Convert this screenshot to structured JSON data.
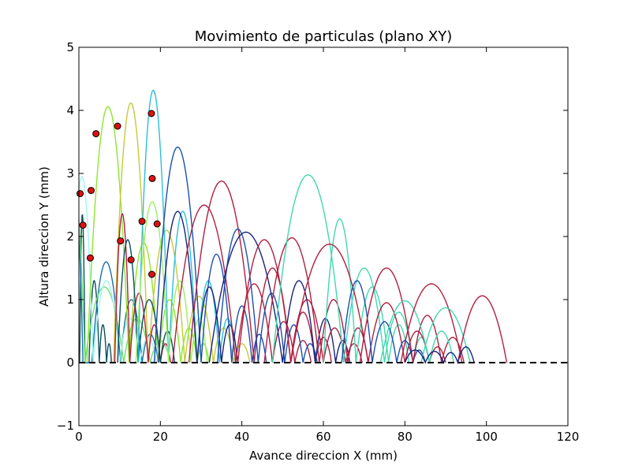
{
  "chart_data": {
    "type": "line",
    "title": "Movimiento de particulas (plano XY)",
    "xlabel": "Avance direccion X (mm)",
    "ylabel": "Altura direccion Y (mm)",
    "xlim": [
      0,
      120
    ],
    "ylim": [
      -1,
      5
    ],
    "xticks": [
      0,
      20,
      40,
      60,
      80,
      100,
      120
    ],
    "yticks": [
      -1,
      0,
      1,
      2,
      3,
      4,
      5
    ],
    "grid": false,
    "legend": "none",
    "ground_line": {
      "y": 0,
      "x_range": [
        0,
        120
      ],
      "style": "dashed",
      "color": "#000000"
    },
    "marker_color": "#dd1111",
    "start_points": [
      {
        "x": 0.3,
        "y": 2.68
      },
      {
        "x": 1.0,
        "y": 2.18
      },
      {
        "x": 2.8,
        "y": 1.66
      },
      {
        "x": 3.0,
        "y": 2.73
      },
      {
        "x": 4.2,
        "y": 3.63
      },
      {
        "x": 9.5,
        "y": 3.75
      },
      {
        "x": 10.2,
        "y": 1.93
      },
      {
        "x": 12.8,
        "y": 1.63
      },
      {
        "x": 15.5,
        "y": 2.24
      },
      {
        "x": 17.8,
        "y": 3.95
      },
      {
        "x": 18.0,
        "y": 2.92
      },
      {
        "x": 17.9,
        "y": 1.4
      },
      {
        "x": 19.2,
        "y": 2.2
      }
    ],
    "series": [
      {
        "color": "#0b4f60",
        "bounces": [
          [
            0.2,
            2.35,
            1.5
          ],
          [
            2.5,
            1.3,
            5.0
          ],
          [
            5.0,
            0.6,
            6.8
          ],
          [
            6.8,
            0.3,
            8.0
          ]
        ]
      },
      {
        "color": "#1a6fb0",
        "bounces": [
          [
            -2.8,
            2.7,
            1.0
          ],
          [
            3.2,
            1.6,
            10.2
          ],
          [
            10.2,
            1.0,
            15.5
          ],
          [
            15.5,
            0.45,
            19.5
          ]
        ]
      },
      {
        "color": "#6ee06e",
        "bounces": [
          [
            -4.0,
            2.85,
            1.5
          ],
          [
            1.5,
            1.2,
            11.0
          ],
          [
            11.0,
            0.7,
            17.5
          ],
          [
            17.5,
            0.35,
            22.5
          ]
        ]
      },
      {
        "color": "#9ff5f0",
        "bounces": [
          [
            -2.0,
            2.95,
            3.5
          ],
          [
            3.5,
            1.3,
            10.0
          ],
          [
            10.0,
            0.7,
            15.0
          ],
          [
            15.0,
            0.4,
            19.0
          ]
        ]
      },
      {
        "color": "#8ee62e",
        "bounces": [
          [
            2.0,
            4.06,
            12.3
          ],
          [
            12.3,
            1.9,
            19.5
          ],
          [
            19.5,
            1.0,
            25.0
          ],
          [
            25.0,
            0.55,
            29.0
          ],
          [
            29.0,
            0.3,
            32.0
          ]
        ]
      },
      {
        "color": "#c8c83a",
        "bounces": [
          [
            8.5,
            4.12,
            17.0
          ],
          [
            17.0,
            2.1,
            26.0
          ],
          [
            26.0,
            1.05,
            33.0
          ],
          [
            33.0,
            0.55,
            38.0
          ],
          [
            38.0,
            0.3,
            42.0
          ]
        ]
      },
      {
        "color": "#b02040",
        "bounces": [
          [
            8.8,
            2.36,
            12.5
          ],
          [
            12.5,
            1.1,
            17.0
          ],
          [
            17.0,
            0.6,
            20.0
          ],
          [
            20.0,
            0.3,
            22.5
          ]
        ]
      },
      {
        "color": "#0b4f60",
        "bounces": [
          [
            9.5,
            1.95,
            14.5
          ],
          [
            14.5,
            1.0,
            20.0
          ],
          [
            20.0,
            0.5,
            23.5
          ]
        ]
      },
      {
        "color": "#2bc0d8",
        "bounces": [
          [
            14.5,
            4.32,
            22.0
          ],
          [
            22.0,
            2.4,
            29.0
          ],
          [
            29.0,
            1.3,
            34.5
          ],
          [
            34.5,
            0.7,
            38.5
          ]
        ]
      },
      {
        "color": "#9af060",
        "bounces": [
          [
            14.0,
            2.55,
            22.0
          ],
          [
            22.0,
            1.3,
            27.5
          ],
          [
            27.5,
            0.7,
            31.5
          ]
        ]
      },
      {
        "color": "#1a4fb0",
        "bounces": [
          [
            18.5,
            3.42,
            30.0
          ],
          [
            30.0,
            1.72,
            37.5
          ],
          [
            37.5,
            0.9,
            42.5
          ],
          [
            42.5,
            0.45,
            46.0
          ]
        ]
      },
      {
        "color": "#1a237e",
        "bounces": [
          [
            19.5,
            2.4,
            29.0
          ],
          [
            29.0,
            1.2,
            35.0
          ],
          [
            35.0,
            0.6,
            39.0
          ]
        ]
      },
      {
        "color": "#b02040",
        "bounces": [
          [
            23.0,
            2.5,
            38.5
          ],
          [
            38.5,
            1.25,
            47.5
          ],
          [
            47.5,
            0.65,
            53.0
          ],
          [
            53.0,
            0.35,
            57.0
          ]
        ]
      },
      {
        "color": "#b02040",
        "bounces": [
          [
            27.0,
            2.88,
            43.0
          ],
          [
            43.0,
            1.5,
            52.0
          ],
          [
            52.0,
            0.8,
            58.0
          ],
          [
            58.0,
            0.4,
            62.0
          ]
        ]
      },
      {
        "color": "#1a4fb0",
        "bounces": [
          [
            34.0,
            2.12,
            44.0
          ],
          [
            44.0,
            1.1,
            50.5
          ],
          [
            50.5,
            0.6,
            55.0
          ],
          [
            55.0,
            0.3,
            58.5
          ]
        ]
      },
      {
        "color": "#1a237e",
        "bounces": [
          [
            32.0,
            2.07,
            50.0
          ],
          [
            50.0,
            1.3,
            58.0
          ],
          [
            58.0,
            0.7,
            63.0
          ],
          [
            63.0,
            0.35,
            66.5
          ]
        ]
      },
      {
        "color": "#b02040",
        "bounces": [
          [
            39.0,
            1.95,
            52.0
          ],
          [
            52.0,
            1.0,
            60.0
          ],
          [
            60.0,
            0.55,
            65.5
          ],
          [
            65.5,
            0.3,
            69.5
          ]
        ]
      },
      {
        "color": "#b02040",
        "bounces": [
          [
            45.5,
            1.98,
            59.0
          ],
          [
            59.0,
            1.0,
            66.0
          ],
          [
            66.0,
            0.55,
            71.0
          ]
        ]
      },
      {
        "color": "#40d8b0",
        "bounces": [
          [
            47.5,
            2.98,
            65.0
          ],
          [
            65.0,
            1.5,
            75.0
          ],
          [
            75.0,
            0.8,
            82.0
          ],
          [
            82.0,
            0.4,
            86.0
          ]
        ]
      },
      {
        "color": "#40d8b0",
        "bounces": [
          [
            60.0,
            2.28,
            68.0
          ],
          [
            68.0,
            1.2,
            76.0
          ],
          [
            76.0,
            0.6,
            81.0
          ]
        ]
      },
      {
        "color": "#b02040",
        "bounces": [
          [
            52.0,
            1.88,
            71.0
          ],
          [
            71.0,
            0.95,
            80.0
          ],
          [
            80.0,
            0.5,
            86.0
          ],
          [
            86.0,
            0.25,
            90.0
          ]
        ]
      },
      {
        "color": "#1a4fb0",
        "bounces": [
          [
            64.5,
            1.3,
            72.0
          ],
          [
            72.0,
            0.65,
            78.0
          ],
          [
            78.0,
            0.35,
            82.0
          ],
          [
            82.0,
            0.2,
            85.0
          ]
        ]
      },
      {
        "color": "#b02040",
        "bounces": [
          [
            69.0,
            1.5,
            82.0
          ],
          [
            82.0,
            0.75,
            89.0
          ],
          [
            89.0,
            0.4,
            94.5
          ]
        ]
      },
      {
        "color": "#40d8b0",
        "bounces": [
          [
            74.0,
            0.98,
            86.0
          ],
          [
            86.0,
            0.5,
            92.0
          ]
        ]
      },
      {
        "color": "#b02040",
        "bounces": [
          [
            79.0,
            1.25,
            94.0
          ]
        ]
      },
      {
        "color": "#40d8b0",
        "bounces": [
          [
            84.0,
            0.87,
            96.0
          ]
        ]
      },
      {
        "color": "#b02040",
        "bounces": [
          [
            93.0,
            1.06,
            105.0
          ]
        ]
      },
      {
        "color": "#1a237e",
        "bounces": [
          [
            80.0,
            0.2,
            85.0
          ],
          [
            85.0,
            0.18,
            89.5
          ],
          [
            89.5,
            0.16,
            93.0
          ],
          [
            93.0,
            0.25,
            97.0
          ]
        ]
      }
    ]
  }
}
